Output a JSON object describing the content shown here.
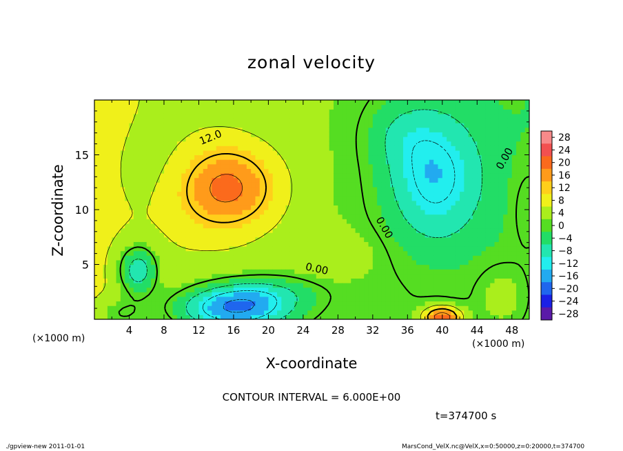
{
  "chart_data": {
    "type": "heatmap",
    "title": "zonal velocity",
    "xlabel": "X-coordinate",
    "ylabel": "Z-coordinate",
    "x_unit_label": "(×1000 m)",
    "xlim": [
      0,
      50
    ],
    "ylim": [
      0,
      20
    ],
    "x_ticks": [
      "4",
      "8",
      "12",
      "16",
      "20",
      "24",
      "28",
      "32",
      "36",
      "40",
      "44",
      "48"
    ],
    "x_tick_values": [
      4,
      8,
      12,
      16,
      20,
      24,
      28,
      32,
      36,
      40,
      44,
      48
    ],
    "y_ticks": [
      "5",
      "10",
      "15"
    ],
    "y_tick_values": [
      5,
      10,
      15
    ],
    "colorbar": {
      "labels": [
        "28",
        "24",
        "20",
        "16",
        "12",
        "8",
        "4",
        "0",
        "−4",
        "−8",
        "−12",
        "−16",
        "−20",
        "−24",
        "−28"
      ],
      "values": [
        28,
        24,
        20,
        16,
        12,
        8,
        4,
        0,
        -4,
        -8,
        -12,
        -16,
        -20,
        -24,
        -28
      ],
      "colors": [
        "#f78a8a",
        "#f25050",
        "#fb6a1c",
        "#ff9b1a",
        "#ffcf1a",
        "#f0f01a",
        "#aaee1c",
        "#55dd22",
        "#22dd66",
        "#22e6b0",
        "#22eeee",
        "#22aaf0",
        "#1f66ee",
        "#1a20e6",
        "#5a1aa8"
      ]
    },
    "contour_interval": 6.0,
    "contour_labels": [
      "12.0",
      "0.00",
      "0.00",
      "0.00"
    ],
    "field_features": [
      {
        "kind": "max",
        "x": 15,
        "z": 12,
        "value": 16
      },
      {
        "kind": "min",
        "x": 39,
        "z": 13,
        "value": -9
      },
      {
        "kind": "min",
        "x": 16,
        "z": 1,
        "value": -16
      },
      {
        "kind": "min",
        "x": 5,
        "z": 4.5,
        "value": -12
      },
      {
        "kind": "max",
        "x": 40,
        "z": 0.3,
        "value": 18
      }
    ]
  },
  "texts": {
    "title": "zonal velocity",
    "xlabel": "X-coordinate",
    "ylabel": "Z-coordinate",
    "x_unit_left": "(×1000 m)",
    "x_unit_right": "(×1000 m)",
    "contour_interval": "CONTOUR INTERVAL = 6.000E+00",
    "time": "t=374700 s",
    "footer_left": "./gpview-new   2011-01-01",
    "footer_right": "MarsCond_VelX.nc@VelX,x=0:50000,z=0:20000,t=374700"
  }
}
